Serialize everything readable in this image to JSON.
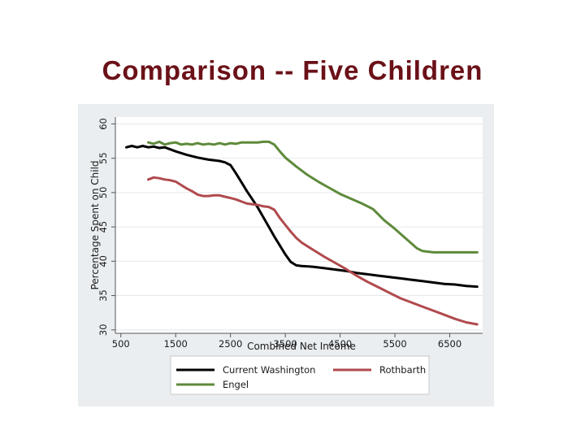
{
  "slide": {
    "title": "Comparison -- Five Children",
    "title_color": "#6b1118"
  },
  "chart_data": {
    "type": "line",
    "xlabel": "Combined Net Income",
    "ylabel": "Percentage Spent on Child",
    "xlim": [
      400,
      7100
    ],
    "ylim": [
      29.5,
      61
    ],
    "xticks": [
      500,
      1500,
      2500,
      3500,
      4500,
      5500,
      6500
    ],
    "yticks": [
      30,
      35,
      40,
      45,
      50,
      55,
      60
    ],
    "grid": "horizontal",
    "legend_position": "bottom",
    "background_color": "#eaeef1",
    "plot_color": "#ffffff",
    "series": [
      {
        "name": "Current Washington",
        "color": "#000000",
        "x": [
          600,
          700,
          800,
          900,
          1000,
          1100,
          1200,
          1300,
          1400,
          1500,
          1700,
          1900,
          2100,
          2300,
          2400,
          2500,
          2600,
          2700,
          2800,
          2900,
          3000,
          3100,
          3200,
          3300,
          3400,
          3500,
          3600,
          3700,
          3800,
          4000,
          4200,
          4400,
          4600,
          4800,
          5000,
          5200,
          5400,
          5600,
          5800,
          6000,
          6200,
          6400,
          6600,
          6800,
          7000
        ],
        "y": [
          56.6,
          56.8,
          56.6,
          56.8,
          56.6,
          56.7,
          56.5,
          56.6,
          56.3,
          56.0,
          55.5,
          55.1,
          54.8,
          54.6,
          54.4,
          54.0,
          52.8,
          51.5,
          50.2,
          49.0,
          47.8,
          46.4,
          45.0,
          43.6,
          42.3,
          41.0,
          39.9,
          39.4,
          39.3,
          39.2,
          39.0,
          38.8,
          38.6,
          38.3,
          38.1,
          37.9,
          37.7,
          37.5,
          37.3,
          37.1,
          36.9,
          36.7,
          36.6,
          36.4,
          36.3
        ]
      },
      {
        "name": "Rothbarth",
        "color": "#b04a4e",
        "x": [
          1000,
          1100,
          1200,
          1300,
          1400,
          1500,
          1600,
          1700,
          1800,
          1900,
          2000,
          2100,
          2200,
          2300,
          2400,
          2500,
          2600,
          2700,
          2800,
          2900,
          3000,
          3100,
          3200,
          3300,
          3400,
          3500,
          3600,
          3700,
          3800,
          4000,
          4200,
          4400,
          4600,
          4800,
          5000,
          5200,
          5400,
          5600,
          5800,
          6000,
          6200,
          6400,
          6600,
          6800,
          7000
        ],
        "y": [
          51.9,
          52.2,
          52.1,
          51.9,
          51.8,
          51.6,
          51.1,
          50.6,
          50.2,
          49.7,
          49.5,
          49.5,
          49.6,
          49.6,
          49.4,
          49.2,
          49.0,
          48.7,
          48.4,
          48.3,
          48.2,
          48.0,
          47.9,
          47.5,
          46.3,
          45.3,
          44.3,
          43.4,
          42.7,
          41.7,
          40.7,
          39.8,
          38.9,
          37.9,
          37.0,
          36.2,
          35.4,
          34.6,
          34.0,
          33.4,
          32.8,
          32.2,
          31.6,
          31.1,
          30.8
        ]
      },
      {
        "name": "Engel",
        "color": "#5e8a3a",
        "x": [
          1000,
          1100,
          1200,
          1300,
          1400,
          1500,
          1600,
          1700,
          1800,
          1900,
          2000,
          2100,
          2200,
          2300,
          2400,
          2500,
          2600,
          2700,
          2800,
          2900,
          3000,
          3100,
          3200,
          3300,
          3400,
          3500,
          3700,
          3900,
          4100,
          4300,
          4500,
          4700,
          4900,
          5100,
          5300,
          5500,
          5700,
          5900,
          6000,
          6200,
          6400,
          6600,
          6800,
          7000
        ],
        "y": [
          57.3,
          57.1,
          57.4,
          57.0,
          57.2,
          57.3,
          57.0,
          57.1,
          57.0,
          57.2,
          57.0,
          57.1,
          57.0,
          57.2,
          57.0,
          57.2,
          57.1,
          57.3,
          57.3,
          57.3,
          57.3,
          57.4,
          57.4,
          57.0,
          56.0,
          55.1,
          53.8,
          52.6,
          51.6,
          50.7,
          49.8,
          49.1,
          48.4,
          47.6,
          46.0,
          44.7,
          43.3,
          41.9,
          41.5,
          41.3,
          41.3,
          41.3,
          41.3,
          41.3
        ]
      }
    ]
  }
}
